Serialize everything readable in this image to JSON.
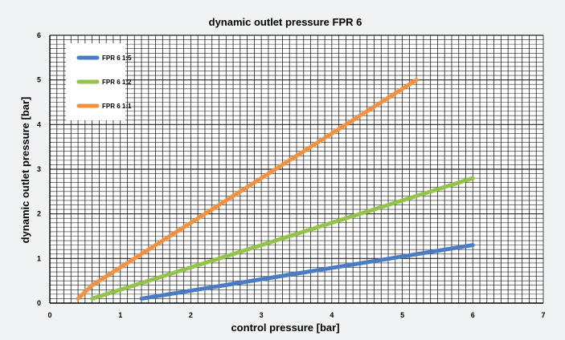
{
  "chart_data": {
    "type": "line",
    "title": "dynamic outlet pressure FPR 6",
    "xlabel": "control pressure [bar]",
    "ylabel": "dynamic outlet pressure [bar]",
    "xlim": [
      0,
      7
    ],
    "ylim": [
      0,
      6
    ],
    "x_ticks": [
      "0",
      "1",
      "2",
      "3",
      "4",
      "5",
      "6",
      "7"
    ],
    "y_ticks": [
      "0",
      "1",
      "2",
      "3",
      "4",
      "5",
      "6"
    ],
    "grid": true,
    "legend_position": "top-left",
    "series": [
      {
        "name": "FPR 6 1:5",
        "color": "#4a7cc4",
        "points": [
          [
            1.3,
            0.1
          ],
          [
            6.0,
            1.3
          ]
        ]
      },
      {
        "name": "FPR 6 1:2",
        "color": "#93c34a",
        "points": [
          [
            0.6,
            0.1
          ],
          [
            6.0,
            2.8
          ]
        ]
      },
      {
        "name": "FPR 6 1:1",
        "color": "#f5913e",
        "points": [
          [
            0.4,
            0.1
          ],
          [
            0.6,
            0.4
          ],
          [
            5.2,
            5.0
          ]
        ]
      }
    ]
  }
}
